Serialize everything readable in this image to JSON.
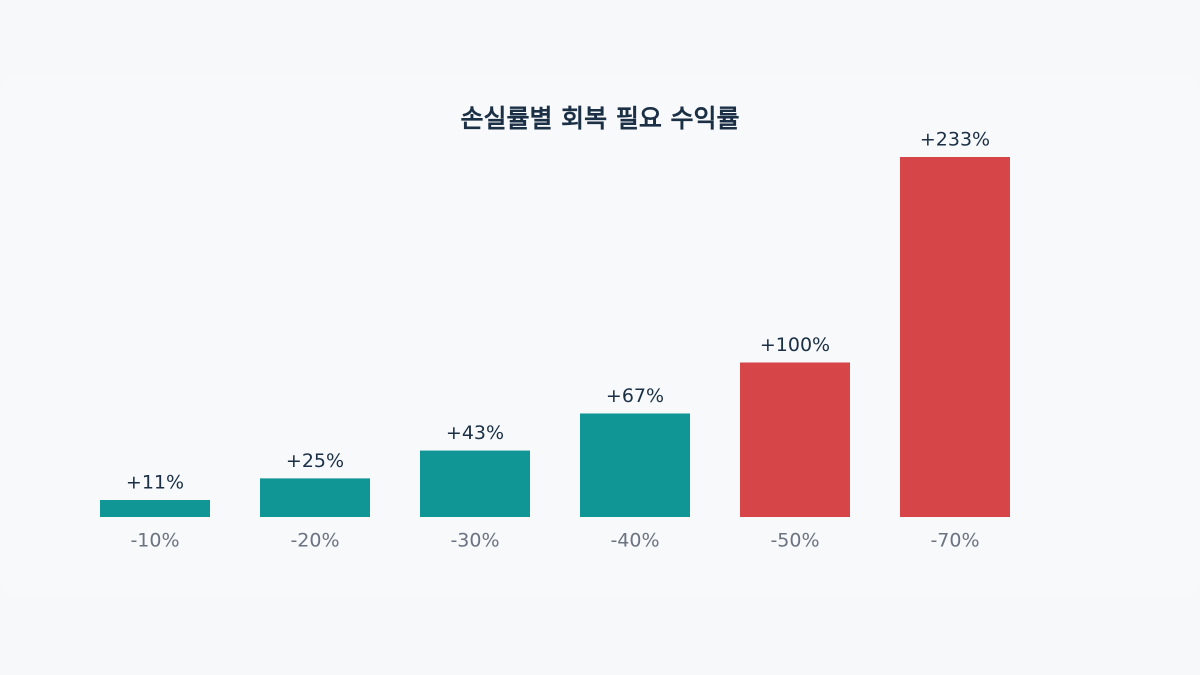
{
  "chart_data": {
    "type": "bar",
    "title": "손실률별 회복 필요 수익률",
    "categories": [
      "-10%",
      "-20%",
      "-30%",
      "-40%",
      "-50%",
      "-70%"
    ],
    "values": [
      11,
      25,
      43,
      67,
      100,
      233
    ],
    "value_labels": [
      "+11%",
      "+25%",
      "+43%",
      "+67%",
      "+100%",
      "+233%"
    ],
    "colors": [
      "#109695",
      "#109695",
      "#109695",
      "#109695",
      "#d64648",
      "#d64648"
    ]
  }
}
